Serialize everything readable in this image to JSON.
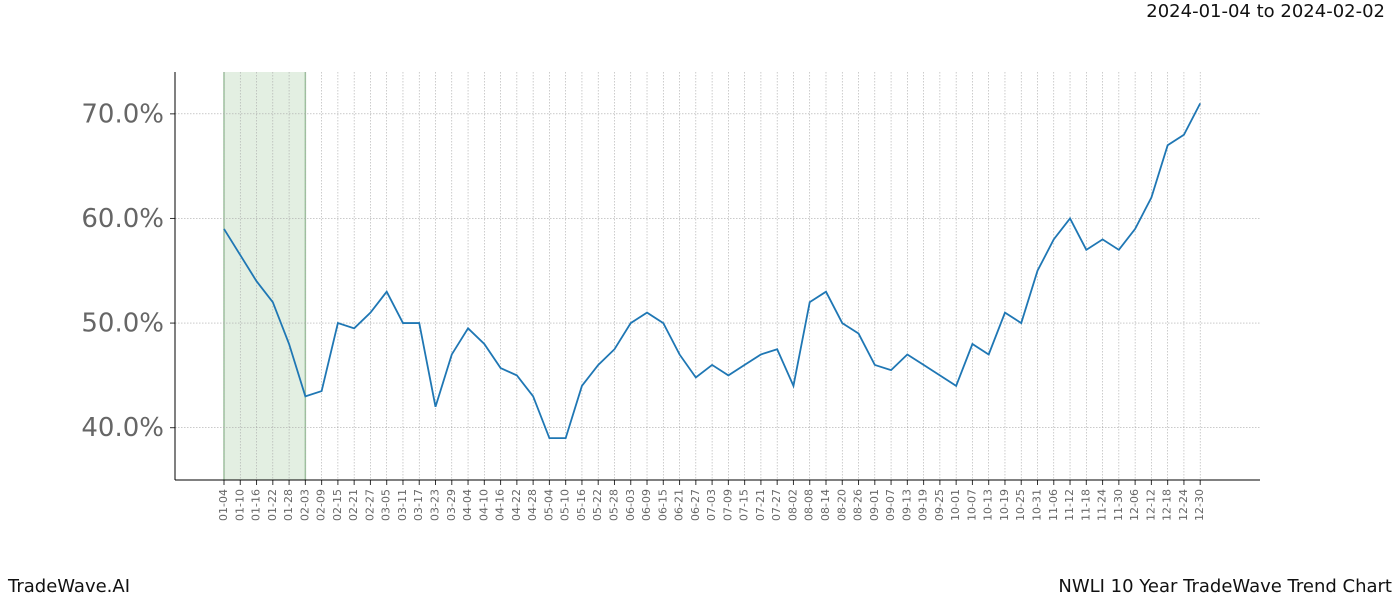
{
  "header": {
    "date_range": "2024-01-04 to 2024-02-02"
  },
  "footer": {
    "brand": "TradeWave.AI",
    "chart_name": "NWLI 10 Year TradeWave Trend Chart"
  },
  "chart_data": {
    "type": "line",
    "categories": [
      "01-04",
      "01-10",
      "01-16",
      "01-22",
      "01-28",
      "02-03",
      "02-09",
      "02-15",
      "02-21",
      "02-27",
      "03-05",
      "03-11",
      "03-17",
      "03-23",
      "03-29",
      "04-04",
      "04-10",
      "04-16",
      "04-22",
      "04-28",
      "05-04",
      "05-10",
      "05-16",
      "05-22",
      "05-28",
      "06-03",
      "06-09",
      "06-15",
      "06-21",
      "06-27",
      "07-03",
      "07-09",
      "07-15",
      "07-21",
      "07-27",
      "08-02",
      "08-08",
      "08-14",
      "08-20",
      "08-26",
      "09-01",
      "09-07",
      "09-13",
      "09-19",
      "09-25",
      "10-01",
      "10-07",
      "10-13",
      "10-19",
      "10-25",
      "10-31",
      "11-06",
      "11-12",
      "11-18",
      "11-24",
      "11-30",
      "12-06",
      "12-12",
      "12-18",
      "12-24",
      "12-30"
    ],
    "series": [
      {
        "color": "#1f77b4",
        "values": [
          59,
          56.5,
          54,
          52,
          48,
          43,
          43.5,
          50,
          49.5,
          51,
          53,
          50,
          50,
          42,
          47,
          49.5,
          48,
          45.7,
          45,
          43,
          39,
          39,
          44,
          46,
          47.5,
          50,
          51,
          50,
          47,
          44.8,
          46,
          45,
          46,
          47,
          47.5,
          44,
          52,
          53,
          50,
          49,
          46,
          45.5,
          47,
          46,
          45,
          44,
          48,
          47,
          51,
          50,
          55,
          58,
          60,
          57,
          58,
          57,
          59,
          62,
          67,
          68,
          71
        ]
      }
    ],
    "ylim": [
      35,
      74
    ],
    "yticks": [
      {
        "value": 40,
        "label": "40.0%"
      },
      {
        "value": 50,
        "label": "50.0%"
      },
      {
        "value": 60,
        "label": "60.0%"
      },
      {
        "value": 70,
        "label": "70.0%"
      }
    ],
    "grid": true,
    "highlight": {
      "from": "01-04",
      "to": "02-03",
      "color": "#e3efe2"
    }
  }
}
